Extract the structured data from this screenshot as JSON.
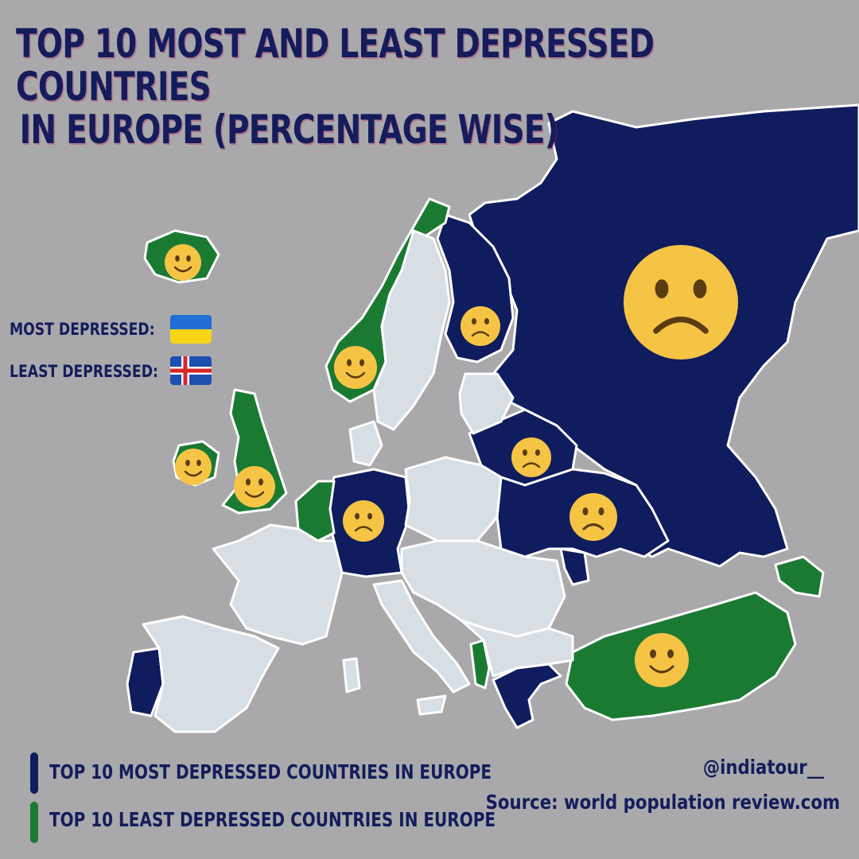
{
  "title": {
    "line1": "TOP 10 MOST AND LEAST DEPRESSED COUNTRIES",
    "line2": "IN EUROPE (PERCENTAGE WISE)"
  },
  "key": {
    "most_label": "MOST DEPRESSED:",
    "least_label": "LEAST DEPRESSED:",
    "most_flag": "ukraine-flag",
    "least_flag": "iceland-flag"
  },
  "legend": {
    "most": {
      "label": "TOP 10 MOST DEPRESSED COUNTRIES IN EUROPE",
      "color": "#0f1c5e"
    },
    "least": {
      "label": "TOP 10 LEAST DEPRESSED COUNTRIES IN EUROPE",
      "color": "#1b7a32"
    }
  },
  "credits": {
    "handle": "@indiatour__",
    "source": "Source: world population review.com"
  },
  "colors": {
    "background": "#a9a9ab",
    "most": "#0f1c5e",
    "least": "#1b7a32",
    "other": "#d7dfe5",
    "border": "#ffffff",
    "face": "#f6c445"
  },
  "icons": {
    "sad": "sad-face-icon",
    "happy": "happy-face-icon"
  }
}
